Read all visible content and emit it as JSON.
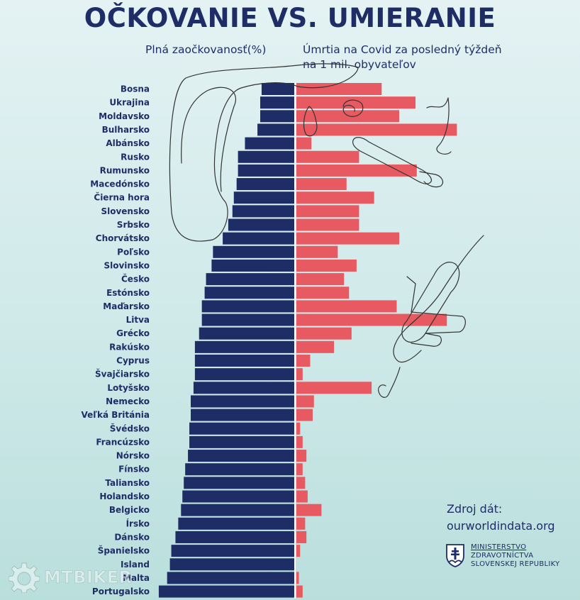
{
  "title": "OČKOVANIE VS. UMIERANIE",
  "header": {
    "left_label": "Plná zaočkovanosť(%)",
    "right_label_line1": "Úmrtia na Covid za posledný týždeň",
    "right_label_line2": "na 1 mil. obyvateľov"
  },
  "source": {
    "label": "Zdroj dát:",
    "url": "ourworldindata.org"
  },
  "ministry": {
    "line1": "MINISTERSTVO",
    "line2": "ZDRAVOTNÍCTVA",
    "line3": "SLOVENSKEJ REPUBLIKY"
  },
  "watermark": {
    "text": "MTBIKER"
  },
  "colors": {
    "vaccination": "#1f2d67",
    "deaths": "#e85a61",
    "title": "#1f2d67",
    "scribble": "#333333"
  },
  "chart_data": {
    "type": "bar",
    "orientation": "horizontal-diverging",
    "title": "OČKOVANIE VS. UMIERANIE",
    "categories": [
      "Bosna",
      "Ukrajina",
      "Moldavsko",
      "Bulharsko",
      "Albánsko",
      "Rusko",
      "Rumunsko",
      "Macedónsko",
      "Čierna hora",
      "Slovensko",
      "Srbsko",
      "Chorvátsko",
      "Poľsko",
      "Slovinsko",
      "Česko",
      "Estónsko",
      "Maďarsko",
      "Litva",
      "Grécko",
      "Rakúsko",
      "Cyprus",
      "Švajčiarsko",
      "Lotyšsko",
      "Nemecko",
      "Veľká Británia",
      "Švédsko",
      "Francúzsko",
      "Nórsko",
      "Fínsko",
      "Taliansko",
      "Holandsko",
      "Belgicko",
      "Írsko",
      "Dánsko",
      "Španielsko",
      "Island",
      "Malta",
      "Portugalsko"
    ],
    "series": [
      {
        "name": "Plná zaočkovanosť(%)",
        "direction": "left",
        "values": [
          24,
          25,
          25,
          27,
          36,
          41,
          41,
          42,
          44,
          45,
          48,
          52,
          59,
          60,
          64,
          65,
          67,
          67,
          69,
          72,
          72,
          72,
          73,
          75,
          75,
          76,
          76,
          77,
          79,
          80,
          81,
          82,
          84,
          86,
          89,
          90,
          92,
          98
        ]
      },
      {
        "name": "Úmrtia na Covid za posledný týždeň na 1 mil. obyvateľov",
        "direction": "right",
        "values": [
          68,
          95,
          82,
          128,
          12,
          50,
          96,
          40,
          62,
          50,
          50,
          82,
          33,
          48,
          38,
          42,
          80,
          120,
          44,
          30,
          11,
          5,
          60,
          14,
          13,
          3,
          5,
          8,
          5,
          7,
          9,
          20,
          7,
          8,
          3,
          0,
          2,
          5
        ]
      }
    ],
    "xlim_left": [
      0,
      100
    ],
    "xlim_right": [
      0,
      160
    ]
  }
}
